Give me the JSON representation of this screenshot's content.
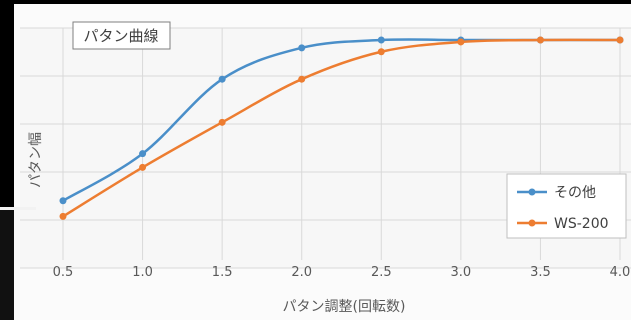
{
  "chart_data": {
    "type": "line",
    "title": "パタン曲線",
    "xlabel": "パタン調整(回転数)",
    "ylabel": "パタン幅",
    "x": [
      0.5,
      1.0,
      1.5,
      2.0,
      2.5,
      3.0,
      3.5,
      4.0
    ],
    "x_tick_labels": [
      "0.5",
      "1.0",
      "1.5",
      "2.0",
      "2.5",
      "3.0",
      "3.5",
      "4.0"
    ],
    "xlim": [
      0.5,
      4.0
    ],
    "ylim": [
      0,
      100
    ],
    "y_tick_labels_shown": false,
    "grid": true,
    "legend_position": "bottom-right",
    "smooth": true,
    "series": [
      {
        "name": "その他",
        "color": "#4a8fc9",
        "values": [
          18,
          42,
          80,
          96,
          100,
          100,
          100,
          100
        ]
      },
      {
        "name": "WS-200",
        "color": "#ed7d31",
        "values": [
          10,
          35,
          58,
          80,
          94,
          99,
          100,
          100
        ]
      }
    ]
  }
}
